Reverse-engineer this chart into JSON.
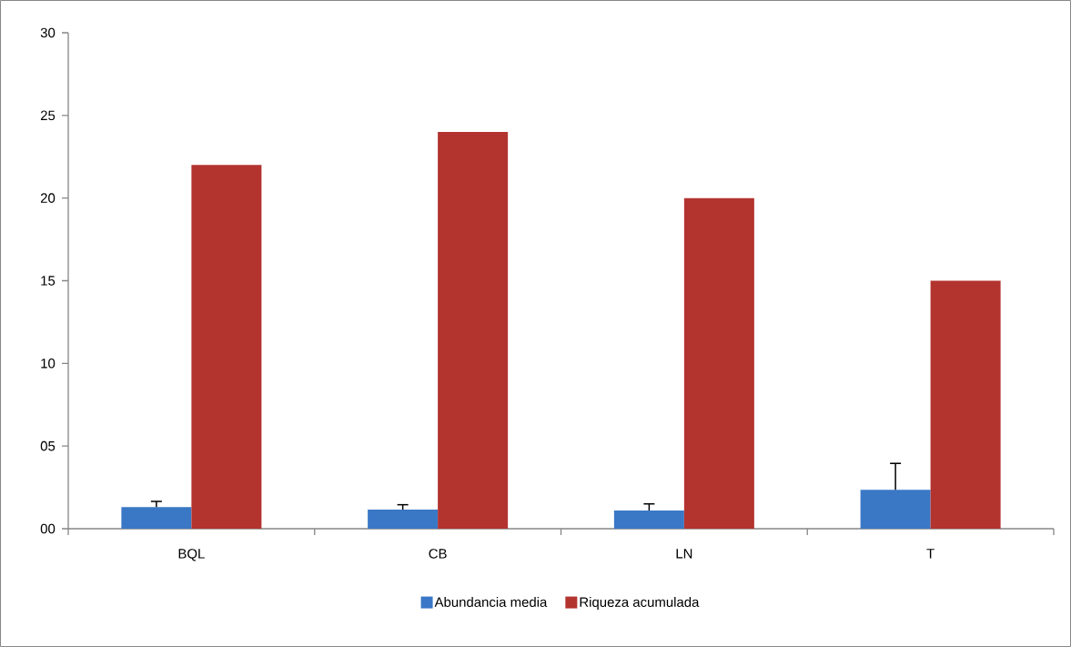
{
  "chart_data": {
    "type": "bar",
    "categories": [
      "BQL",
      "CB",
      "LN",
      "T"
    ],
    "series": [
      {
        "name": "Abundancia media",
        "color": "#3a78c6",
        "values": [
          1.3,
          1.15,
          1.1,
          2.35
        ],
        "errors": [
          [
            1.3,
            1.65
          ],
          [
            1.15,
            1.45
          ],
          [
            1.1,
            1.5
          ],
          [
            2.35,
            3.95
          ]
        ]
      },
      {
        "name": "Riqueza acumulada",
        "color": "#b3332f",
        "values": [
          22,
          24,
          20,
          15
        ]
      }
    ],
    "ylim": [
      0,
      30
    ],
    "yticks": [
      {
        "value": 0,
        "label": "00"
      },
      {
        "value": 5,
        "label": "05"
      },
      10,
      15,
      20,
      25,
      30
    ],
    "grid": false,
    "legend": "bottom"
  }
}
